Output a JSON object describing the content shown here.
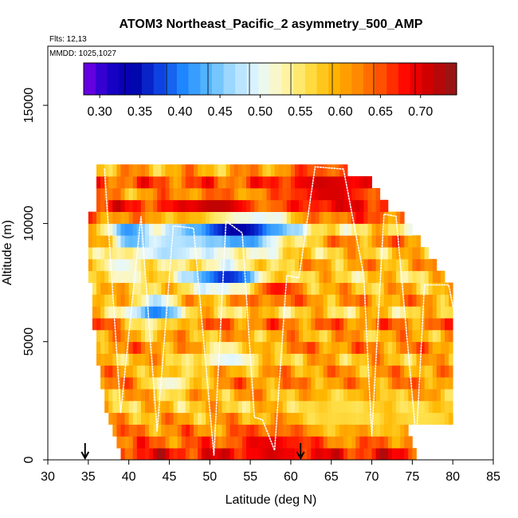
{
  "chart_data": {
    "type": "heatmap",
    "title": "ATOM3 Northeast_Pacific_2 asymmetry_500_AMP",
    "flights_label": "Flts: 12,13",
    "dates_label": "MMDD: 1025,1027",
    "xlabel": "Latitude (deg N)",
    "ylabel": "Altitude (m)",
    "xlim": [
      30,
      85
    ],
    "ylim": [
      0,
      17500
    ],
    "x_ticks": [
      30,
      35,
      40,
      45,
      50,
      55,
      60,
      65,
      70,
      75,
      80,
      85
    ],
    "y_ticks": [
      0,
      5000,
      10000,
      15000
    ],
    "grid": false,
    "colorbar": {
      "min": 0.28,
      "max": 0.745,
      "ticks": [
        0.3,
        0.35,
        0.4,
        0.45,
        0.5,
        0.55,
        0.6,
        0.65,
        0.7
      ],
      "tick_labels": [
        "0.30",
        "0.35",
        "0.40",
        "0.45",
        "0.50",
        "0.55",
        "0.60",
        "0.65",
        "0.70"
      ],
      "colors": [
        "#7c00e8",
        "#1a00c8",
        "#0000a8",
        "#0d3de0",
        "#1e88ff",
        "#55b6ff",
        "#a6dcff",
        "#e6f8ff",
        "#fff7b8",
        "#ffe14a",
        "#ffb700",
        "#ff8a00",
        "#ff4e00",
        "#ff0000",
        "#c80000",
        "#8c1a1a"
      ]
    },
    "lat_start": 34.5,
    "lat_step": 0.5,
    "alt_step": 500,
    "profiles": [
      {
        "alt": 250,
        "lat_min": 39.0,
        "lat_max": 75.5,
        "base": 0.68
      },
      {
        "alt": 750,
        "lat_min": 38.5,
        "lat_max": 75.0,
        "base": 0.64
      },
      {
        "alt": 1250,
        "lat_min": 38.0,
        "lat_max": 74.5,
        "base": 0.62
      },
      {
        "alt": 1750,
        "lat_min": 37.5,
        "lat_max": 80.0,
        "base": 0.6
      },
      {
        "alt": 2250,
        "lat_min": 37.0,
        "lat_max": 80.0,
        "base": 0.58
      },
      {
        "alt": 2750,
        "lat_min": 37.0,
        "lat_max": 80.0,
        "base": 0.6
      },
      {
        "alt": 3250,
        "lat_min": 36.5,
        "lat_max": 80.0,
        "base": 0.62
      },
      {
        "alt": 3750,
        "lat_min": 36.5,
        "lat_max": 80.0,
        "base": 0.61
      },
      {
        "alt": 4250,
        "lat_min": 36.0,
        "lat_max": 80.0,
        "base": 0.59
      },
      {
        "alt": 4750,
        "lat_min": 36.0,
        "lat_max": 80.0,
        "base": 0.62
      },
      {
        "alt": 5250,
        "lat_min": 36.0,
        "lat_max": 80.0,
        "base": 0.6
      },
      {
        "alt": 5750,
        "lat_min": 35.5,
        "lat_max": 80.0,
        "base": 0.63
      },
      {
        "alt": 6250,
        "lat_min": 35.5,
        "lat_max": 80.0,
        "base": 0.57
      },
      {
        "alt": 6750,
        "lat_min": 35.5,
        "lat_max": 80.0,
        "base": 0.61
      },
      {
        "alt": 7250,
        "lat_min": 35.5,
        "lat_max": 80.0,
        "base": 0.59
      },
      {
        "alt": 7750,
        "lat_min": 35.0,
        "lat_max": 79.0,
        "base": 0.57
      },
      {
        "alt": 8250,
        "lat_min": 35.0,
        "lat_max": 78.0,
        "base": 0.6
      },
      {
        "alt": 8750,
        "lat_min": 35.0,
        "lat_max": 77.0,
        "base": 0.58
      },
      {
        "alt": 9250,
        "lat_min": 35.0,
        "lat_max": 76.0,
        "base": 0.62
      },
      {
        "alt": 9750,
        "lat_min": 35.0,
        "lat_max": 75.0,
        "base": 0.56
      },
      {
        "alt": 10250,
        "lat_min": 35.0,
        "lat_max": 74.0,
        "base": 0.64
      },
      {
        "alt": 10750,
        "lat_min": 36.0,
        "lat_max": 72.0,
        "base": 0.67
      },
      {
        "alt": 11250,
        "lat_min": 36.0,
        "lat_max": 71.0,
        "base": 0.61
      },
      {
        "alt": 11750,
        "lat_min": 36.0,
        "lat_max": 70.0,
        "base": 0.65
      },
      {
        "alt": 12250,
        "lat_min": 36.0,
        "lat_max": 67.0,
        "base": 0.6
      }
    ],
    "anomalies": [
      {
        "lat": 53.0,
        "alt": 9800,
        "rl": 7,
        "ra": 900,
        "v": 0.33
      },
      {
        "lat": 50.5,
        "alt": 10700,
        "rl": 6,
        "ra": 500,
        "v": 0.72
      },
      {
        "lat": 40.0,
        "alt": 9500,
        "rl": 2.5,
        "ra": 500,
        "v": 0.38
      },
      {
        "lat": 52.0,
        "alt": 7700,
        "rl": 5,
        "ra": 500,
        "v": 0.36
      },
      {
        "lat": 43.0,
        "alt": 6300,
        "rl": 3,
        "ra": 600,
        "v": 0.4
      },
      {
        "lat": 45.0,
        "alt": 9000,
        "rl": 4,
        "ra": 600,
        "v": 0.45
      },
      {
        "lat": 39.0,
        "alt": 8200,
        "rl": 3,
        "ra": 600,
        "v": 0.5
      },
      {
        "lat": 52.0,
        "alt": 4400,
        "rl": 4,
        "ra": 500,
        "v": 0.49
      },
      {
        "lat": 45.0,
        "alt": 3300,
        "rl": 3,
        "ra": 500,
        "v": 0.51
      },
      {
        "lat": 57.5,
        "alt": 600,
        "rl": 4.5,
        "ra": 700,
        "v": 0.7
      },
      {
        "lat": 66.0,
        "alt": 2000,
        "rl": 6,
        "ra": 900,
        "v": 0.56
      },
      {
        "lat": 76.0,
        "alt": 1800,
        "rl": 5,
        "ra": 700,
        "v": 0.56
      },
      {
        "lat": 64.5,
        "alt": 11500,
        "rl": 6,
        "ra": 900,
        "v": 0.71
      },
      {
        "lat": 58.0,
        "alt": 7200,
        "rl": 3,
        "ra": 500,
        "v": 0.68
      }
    ],
    "flight_track": [
      [
        37.0,
        12300
      ],
      [
        39.0,
        2000
      ],
      [
        41.5,
        10300
      ],
      [
        43.5,
        1200
      ],
      [
        45.5,
        9900
      ],
      [
        48.0,
        9800
      ],
      [
        50.5,
        200
      ],
      [
        52.0,
        10100
      ],
      [
        54.0,
        9600
      ],
      [
        55.5,
        1800
      ],
      [
        56.5,
        1700
      ],
      [
        58.0,
        400
      ],
      [
        59.5,
        7800
      ],
      [
        61.0,
        7700
      ],
      [
        63.0,
        12400
      ],
      [
        66.5,
        12300
      ],
      [
        69.0,
        7800
      ],
      [
        70.0,
        1000
      ],
      [
        71.5,
        10400
      ],
      [
        73.0,
        10300
      ],
      [
        75.5,
        800
      ],
      [
        76.5,
        7400
      ],
      [
        79.5,
        7400
      ],
      [
        80.0,
        6500
      ]
    ],
    "annotations": [
      {
        "label": "arrow-down",
        "lat": 34.6
      },
      {
        "label": "arrow-down",
        "lat": 61.2
      }
    ]
  }
}
